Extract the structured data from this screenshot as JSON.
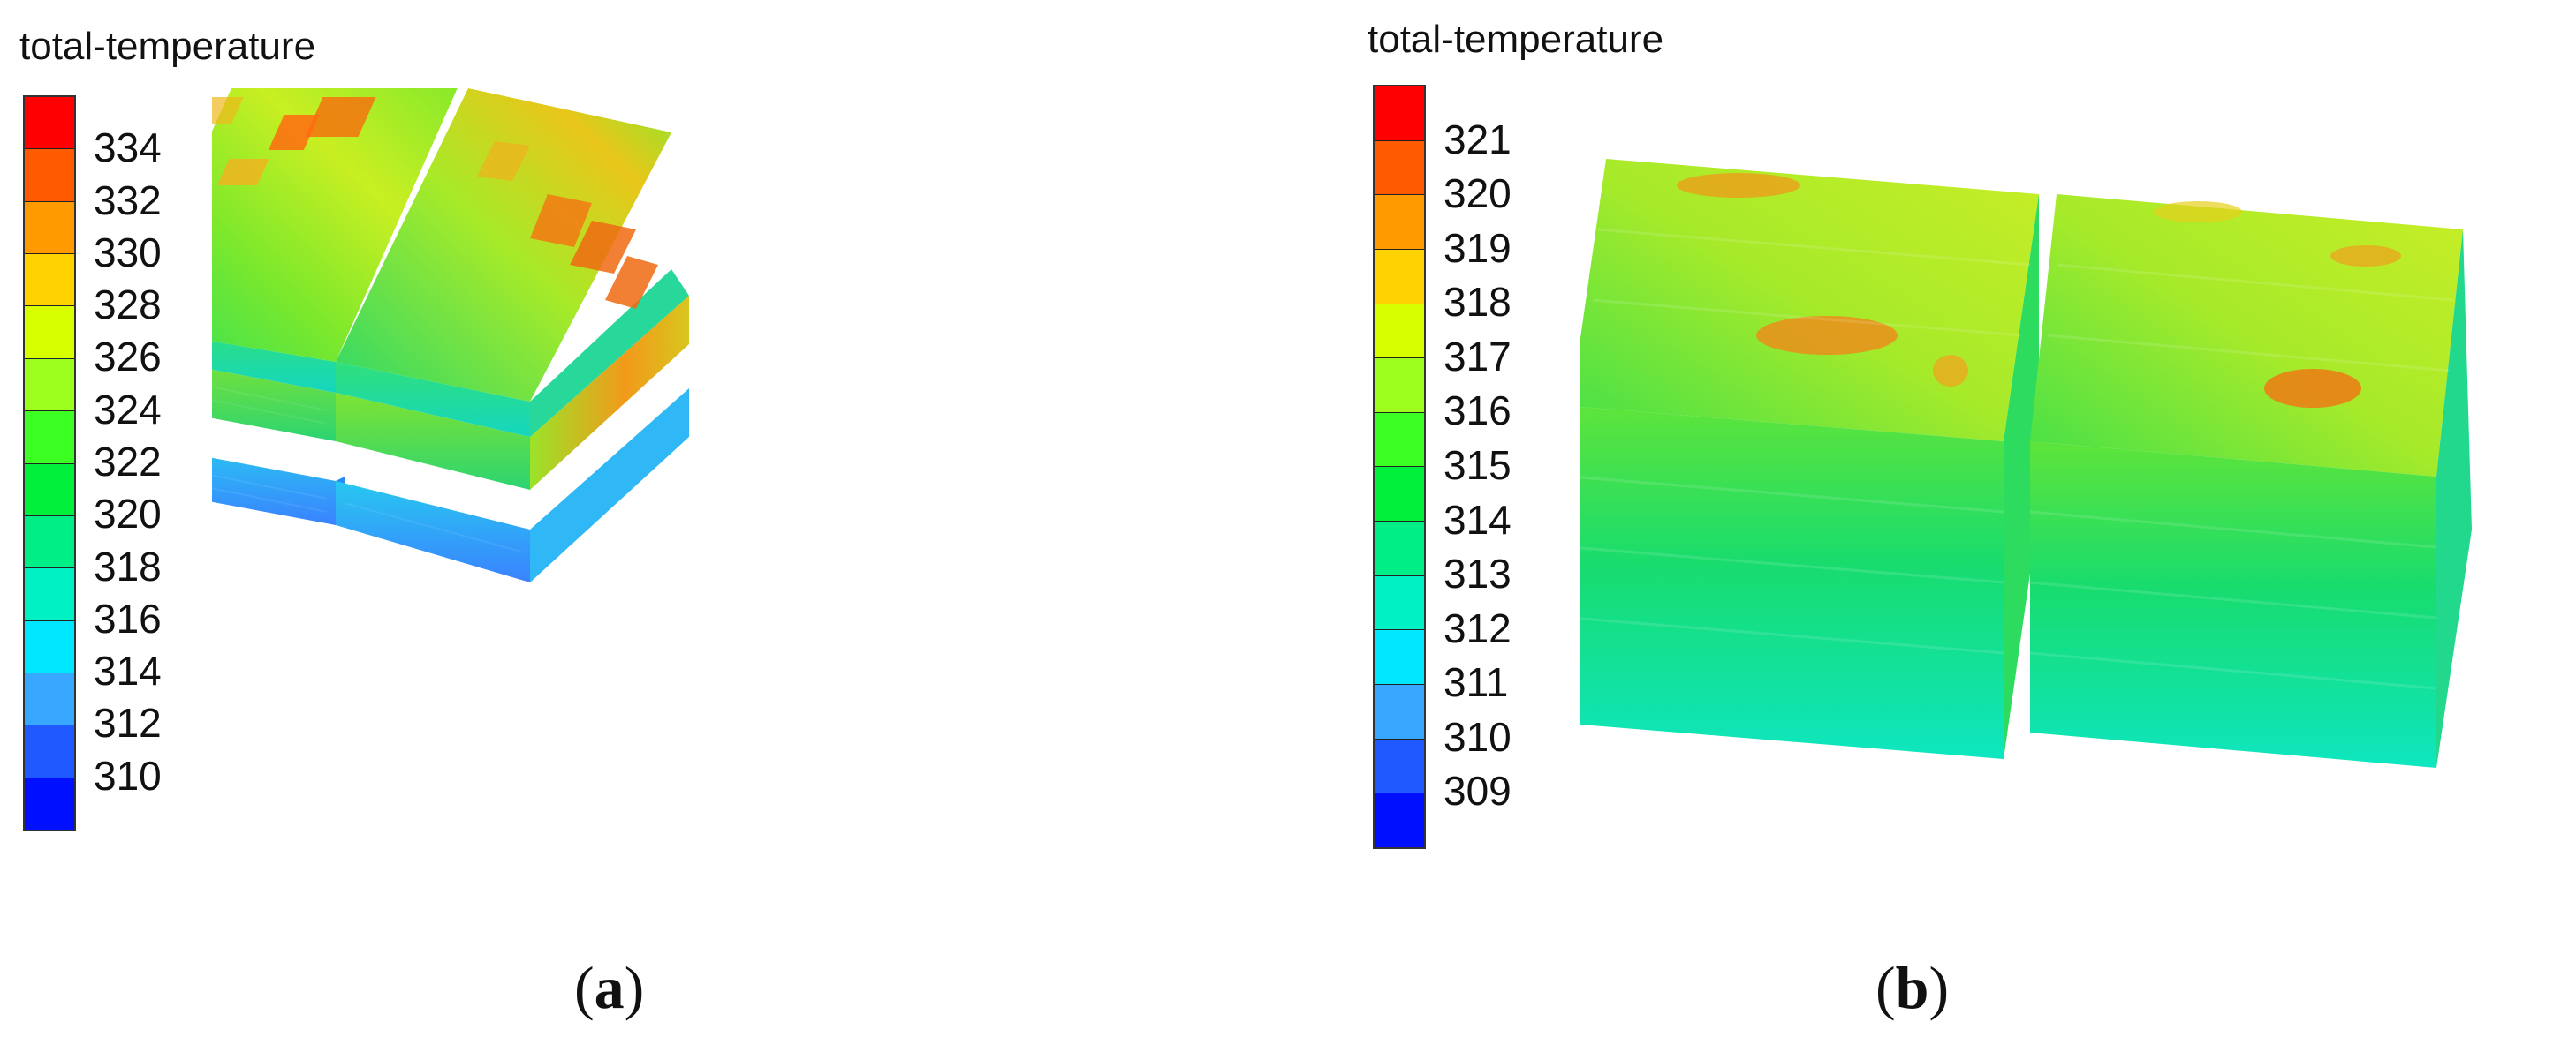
{
  "panels": [
    {
      "id": "a",
      "caption_letter": "a",
      "colorbar": {
        "title": "total-temperature",
        "ticks": [
          "334",
          "332",
          "330",
          "328",
          "326",
          "324",
          "322",
          "320",
          "318",
          "316",
          "314",
          "312",
          "310"
        ],
        "colors": [
          "#ff0000",
          "#ff5a00",
          "#ff9a00",
          "#ffd200",
          "#d8ff00",
          "#9cff1e",
          "#3cff24",
          "#00f03c",
          "#00ee86",
          "#00f2c4",
          "#00e8ff",
          "#38a8ff",
          "#1e5aff",
          "#0010ff"
        ]
      }
    },
    {
      "id": "b",
      "caption_letter": "b",
      "colorbar": {
        "title": "total-temperature",
        "ticks": [
          "321",
          "320",
          "319",
          "318",
          "317",
          "316",
          "315",
          "314",
          "313",
          "312",
          "311",
          "310",
          "309"
        ],
        "colors": [
          "#ff0000",
          "#ff5a00",
          "#ff9a00",
          "#ffd200",
          "#d8ff00",
          "#9cff1e",
          "#3cff24",
          "#00f03c",
          "#00ee86",
          "#00f2c4",
          "#00e8ff",
          "#38a8ff",
          "#1e5aff",
          "#0010ff"
        ]
      }
    }
  ],
  "caption_paren_open": "(",
  "caption_paren_close": ")"
}
